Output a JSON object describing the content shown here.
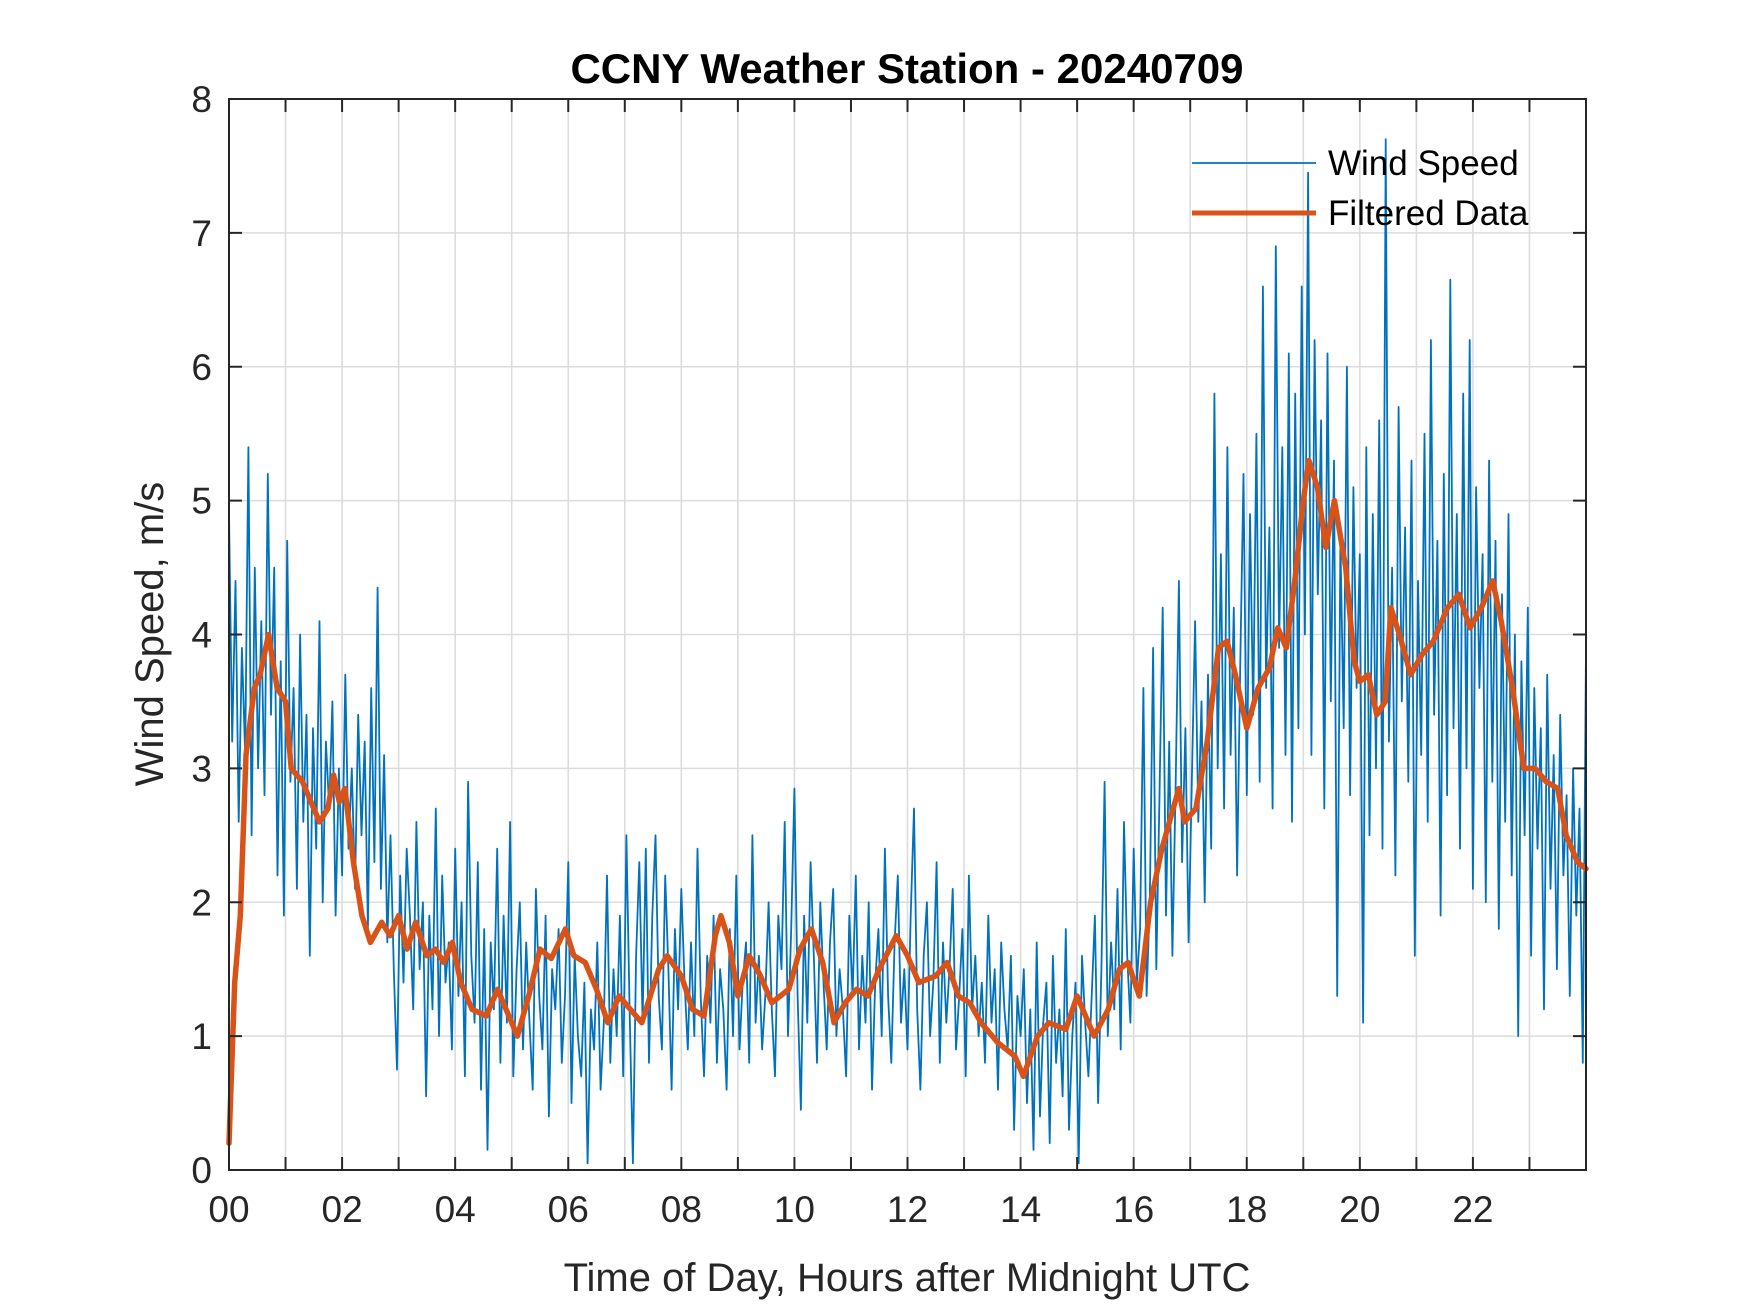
{
  "chart_data": {
    "type": "line",
    "title": "CCNY Weather Station - 20240709",
    "xlabel": "Time of Day, Hours after Midnight UTC",
    "ylabel": "Wind Speed, m/s",
    "xlim": [
      0,
      24
    ],
    "ylim": [
      0,
      8
    ],
    "x_ticks": [
      0,
      2,
      4,
      6,
      8,
      10,
      12,
      14,
      16,
      18,
      20,
      22
    ],
    "x_tick_labels": [
      "00",
      "02",
      "04",
      "06",
      "08",
      "10",
      "12",
      "14",
      "16",
      "18",
      "20",
      "22"
    ],
    "x_minor_grid_step": 1,
    "y_ticks": [
      0,
      1,
      2,
      3,
      4,
      5,
      6,
      7,
      8
    ],
    "y_tick_labels": [
      "0",
      "1",
      "2",
      "3",
      "4",
      "5",
      "6",
      "7",
      "8"
    ],
    "grid": true,
    "legend": {
      "placement": "top-right",
      "entries": [
        "Wind Speed",
        "Filtered Data"
      ]
    },
    "series": [
      {
        "name": "Wind Speed",
        "color": "#0072BD",
        "x_start": 0,
        "x_step_hours": 0.0333333,
        "values": [
          4.9,
          3.2,
          4.4,
          2.6,
          3.9,
          3.1,
          5.4,
          2.5,
          4.5,
          3.0,
          4.1,
          2.8,
          5.2,
          3.4,
          4.5,
          2.2,
          3.8,
          1.9,
          4.7,
          2.9,
          3.6,
          2.1,
          4.0,
          2.6,
          3.4,
          1.6,
          3.3,
          2.4,
          4.1,
          2.0,
          3.2,
          2.7,
          3.5,
          1.9,
          3.0,
          2.2,
          3.7,
          2.4,
          3.0,
          2.1,
          3.4,
          2.5,
          3.2,
          1.8,
          3.6,
          2.3,
          4.35,
          2.1,
          3.1,
          1.7,
          2.5,
          1.5,
          0.75,
          2.2,
          1.4,
          2.4,
          1.9,
          1.2,
          2.6,
          1.5,
          2.0,
          0.55,
          1.9,
          1.2,
          2.7,
          1.0,
          2.2,
          1.4,
          1.7,
          0.9,
          2.4,
          1.3,
          2.0,
          0.7,
          2.9,
          1.6,
          1.1,
          2.3,
          0.6,
          1.8,
          0.15,
          1.7,
          1.2,
          2.4,
          0.8,
          1.9,
          1.1,
          2.6,
          0.7,
          1.5,
          2.0,
          0.9,
          1.7,
          1.1,
          0.6,
          2.1,
          1.3,
          0.9,
          1.9,
          0.4,
          1.5,
          1.2,
          1.8,
          0.8,
          1.3,
          2.3,
          0.5,
          1.6,
          1.0,
          0.7,
          1.4,
          0.05,
          1.2,
          0.9,
          1.7,
          0.6,
          1.1,
          2.2,
          0.8,
          1.5,
          1.0,
          1.9,
          0.7,
          2.5,
          1.2,
          0.05,
          1.6,
          2.3,
          1.1,
          2.4,
          0.8,
          1.9,
          2.5,
          1.3,
          0.9,
          2.2,
          1.5,
          0.6,
          1.8,
          1.2,
          2.1,
          1.4,
          0.9,
          1.7,
          1.0,
          2.4,
          1.3,
          0.7,
          1.6,
          1.1,
          1.9,
          0.8,
          1.5,
          1.2,
          0.6,
          1.8,
          1.0,
          2.2,
          0.9,
          1.4,
          1.7,
          0.8,
          2.5,
          1.1,
          1.6,
          0.9,
          1.3,
          2.0,
          1.2,
          0.7,
          1.9,
          1.5,
          2.6,
          1.0,
          1.8,
          2.85,
          1.3,
          0.45,
          1.9,
          1.1,
          2.3,
          1.6,
          0.8,
          2.0,
          1.4,
          0.9,
          1.7,
          2.1,
          1.0,
          1.5,
          1.2,
          0.7,
          1.9,
          1.3,
          2.2,
          0.9,
          1.6,
          1.1,
          2.0,
          0.6,
          1.4,
          1.8,
          1.0,
          2.4,
          1.3,
          0.8,
          1.7,
          2.2,
          1.1,
          1.5,
          0.9,
          1.9,
          2.7,
          1.2,
          0.6,
          1.6,
          2.0,
          1.0,
          1.4,
          2.3,
          0.8,
          1.7,
          1.1,
          1.5,
          2.1,
          0.9,
          1.3,
          1.8,
          0.7,
          2.2,
          1.2,
          1.6,
          1.0,
          1.4,
          0.8,
          1.9,
          1.1,
          1.5,
          0.6,
          1.7,
          1.2,
          0.9,
          1.6,
          0.3,
          1.3,
          1.0,
          1.5,
          0.5,
          1.2,
          0.15,
          1.7,
          0.4,
          1.1,
          1.4,
          0.2,
          1.6,
          0.8,
          1.2,
          0.55,
          1.8,
          0.3,
          1.0,
          1.4,
          0.05,
          1.6,
          1.1,
          0.7,
          1.3,
          1.9,
          0.5,
          1.5,
          2.9,
          1.0,
          1.7,
          1.2,
          2.1,
          0.9,
          2.6,
          1.6,
          1.1,
          2.4,
          1.4,
          1.8,
          3.6,
          1.3,
          2.0,
          3.9,
          1.5,
          2.8,
          4.2,
          1.9,
          3.2,
          1.6,
          2.9,
          4.4,
          2.3,
          3.3,
          1.7,
          2.9,
          4.1,
          2.6,
          3.5,
          2.0,
          3.7,
          2.4,
          5.8,
          3.0,
          4.6,
          2.7,
          5.4,
          3.1,
          4.2,
          2.2,
          3.8,
          5.2,
          2.8,
          4.9,
          3.4,
          5.5,
          2.9,
          6.6,
          3.6,
          4.8,
          2.7,
          6.9,
          3.9,
          5.4,
          3.1,
          6.1,
          2.6,
          5.8,
          3.3,
          6.6,
          4.0,
          7.45,
          3.1,
          6.2,
          4.3,
          5.6,
          2.7,
          6.1,
          3.5,
          5.3,
          1.3,
          4.7,
          3.3,
          6.0,
          2.8,
          5.1,
          3.6,
          4.6,
          1.1,
          5.4,
          2.5,
          4.9,
          3.0,
          5.6,
          2.4,
          7.7,
          3.2,
          4.5,
          2.2,
          5.7,
          3.5,
          4.8,
          2.9,
          5.3,
          1.6,
          4.4,
          3.1,
          5.5,
          2.6,
          6.2,
          3.4,
          4.7,
          1.9,
          5.2,
          2.8,
          6.65,
          3.3,
          4.9,
          2.4,
          5.8,
          3.0,
          6.2,
          2.1,
          5.1,
          3.6,
          4.6,
          2.0,
          5.3,
          2.9,
          4.7,
          1.8,
          4.3,
          2.6,
          4.9,
          2.2,
          4.0,
          1.0,
          3.8,
          2.5,
          4.2,
          1.6,
          3.6,
          2.4,
          3.3,
          1.2,
          3.7,
          2.1,
          3.1,
          1.5,
          3.4,
          2.2,
          2.8,
          1.3,
          3.0,
          1.9,
          2.7,
          0.8,
          3.9
        ]
      },
      {
        "name": "Filtered Data",
        "color": "#D95319",
        "points": [
          [
            0.0,
            0.2
          ],
          [
            0.1,
            1.4
          ],
          [
            0.2,
            1.9
          ],
          [
            0.3,
            3.1
          ],
          [
            0.45,
            3.6
          ],
          [
            0.55,
            3.7
          ],
          [
            0.7,
            4.0
          ],
          [
            0.85,
            3.6
          ],
          [
            1.0,
            3.5
          ],
          [
            1.1,
            3.0
          ],
          [
            1.3,
            2.9
          ],
          [
            1.5,
            2.7
          ],
          [
            1.6,
            2.6
          ],
          [
            1.75,
            2.7
          ],
          [
            1.85,
            2.95
          ],
          [
            1.95,
            2.75
          ],
          [
            2.05,
            2.85
          ],
          [
            2.2,
            2.3
          ],
          [
            2.35,
            1.9
          ],
          [
            2.5,
            1.7
          ],
          [
            2.7,
            1.85
          ],
          [
            2.85,
            1.75
          ],
          [
            3.0,
            1.9
          ],
          [
            3.15,
            1.65
          ],
          [
            3.3,
            1.85
          ],
          [
            3.5,
            1.6
          ],
          [
            3.65,
            1.65
          ],
          [
            3.8,
            1.55
          ],
          [
            3.95,
            1.7
          ],
          [
            4.1,
            1.4
          ],
          [
            4.3,
            1.2
          ],
          [
            4.55,
            1.15
          ],
          [
            4.75,
            1.35
          ],
          [
            5.1,
            1.0
          ],
          [
            5.3,
            1.3
          ],
          [
            5.5,
            1.65
          ],
          [
            5.7,
            1.58
          ],
          [
            5.95,
            1.8
          ],
          [
            6.1,
            1.6
          ],
          [
            6.3,
            1.55
          ],
          [
            6.5,
            1.35
          ],
          [
            6.7,
            1.1
          ],
          [
            6.9,
            1.3
          ],
          [
            7.1,
            1.2
          ],
          [
            7.3,
            1.1
          ],
          [
            7.6,
            1.5
          ],
          [
            7.75,
            1.6
          ],
          [
            8.0,
            1.45
          ],
          [
            8.2,
            1.2
          ],
          [
            8.4,
            1.15
          ],
          [
            8.6,
            1.75
          ],
          [
            8.7,
            1.9
          ],
          [
            8.85,
            1.7
          ],
          [
            9.0,
            1.3
          ],
          [
            9.2,
            1.6
          ],
          [
            9.4,
            1.45
          ],
          [
            9.6,
            1.25
          ],
          [
            9.9,
            1.35
          ],
          [
            10.1,
            1.65
          ],
          [
            10.3,
            1.8
          ],
          [
            10.5,
            1.55
          ],
          [
            10.7,
            1.1
          ],
          [
            10.9,
            1.25
          ],
          [
            11.1,
            1.35
          ],
          [
            11.3,
            1.3
          ],
          [
            11.5,
            1.5
          ],
          [
            11.8,
            1.75
          ],
          [
            12.0,
            1.6
          ],
          [
            12.2,
            1.4
          ],
          [
            12.5,
            1.45
          ],
          [
            12.7,
            1.55
          ],
          [
            12.9,
            1.3
          ],
          [
            13.1,
            1.25
          ],
          [
            13.3,
            1.1
          ],
          [
            13.6,
            0.95
          ],
          [
            13.9,
            0.85
          ],
          [
            14.05,
            0.7
          ],
          [
            14.3,
            1.0
          ],
          [
            14.5,
            1.1
          ],
          [
            14.8,
            1.05
          ],
          [
            15.0,
            1.3
          ],
          [
            15.3,
            1.0
          ],
          [
            15.55,
            1.2
          ],
          [
            15.75,
            1.5
          ],
          [
            15.9,
            1.55
          ],
          [
            16.1,
            1.3
          ],
          [
            16.3,
            2.0
          ],
          [
            16.5,
            2.4
          ],
          [
            16.7,
            2.7
          ],
          [
            16.8,
            2.85
          ],
          [
            16.9,
            2.6
          ],
          [
            17.1,
            2.7
          ],
          [
            17.3,
            3.2
          ],
          [
            17.5,
            3.9
          ],
          [
            17.65,
            3.95
          ],
          [
            17.8,
            3.7
          ],
          [
            18.0,
            3.3
          ],
          [
            18.2,
            3.6
          ],
          [
            18.4,
            3.75
          ],
          [
            18.55,
            4.05
          ],
          [
            18.7,
            3.9
          ],
          [
            18.85,
            4.4
          ],
          [
            19.0,
            5.0
          ],
          [
            19.1,
            5.3
          ],
          [
            19.25,
            5.1
          ],
          [
            19.4,
            4.65
          ],
          [
            19.55,
            5.0
          ],
          [
            19.75,
            4.5
          ],
          [
            19.9,
            3.8
          ],
          [
            20.0,
            3.65
          ],
          [
            20.15,
            3.7
          ],
          [
            20.3,
            3.4
          ],
          [
            20.45,
            3.5
          ],
          [
            20.55,
            4.2
          ],
          [
            20.7,
            4.0
          ],
          [
            20.9,
            3.7
          ],
          [
            21.1,
            3.85
          ],
          [
            21.3,
            3.95
          ],
          [
            21.55,
            4.2
          ],
          [
            21.75,
            4.3
          ],
          [
            21.95,
            4.05
          ],
          [
            22.15,
            4.2
          ],
          [
            22.35,
            4.4
          ],
          [
            22.5,
            4.1
          ],
          [
            22.7,
            3.6
          ],
          [
            22.9,
            3.0
          ],
          [
            23.1,
            3.0
          ],
          [
            23.3,
            2.9
          ],
          [
            23.5,
            2.85
          ],
          [
            23.65,
            2.5
          ],
          [
            23.85,
            2.3
          ],
          [
            24.0,
            2.25
          ]
        ]
      }
    ]
  }
}
